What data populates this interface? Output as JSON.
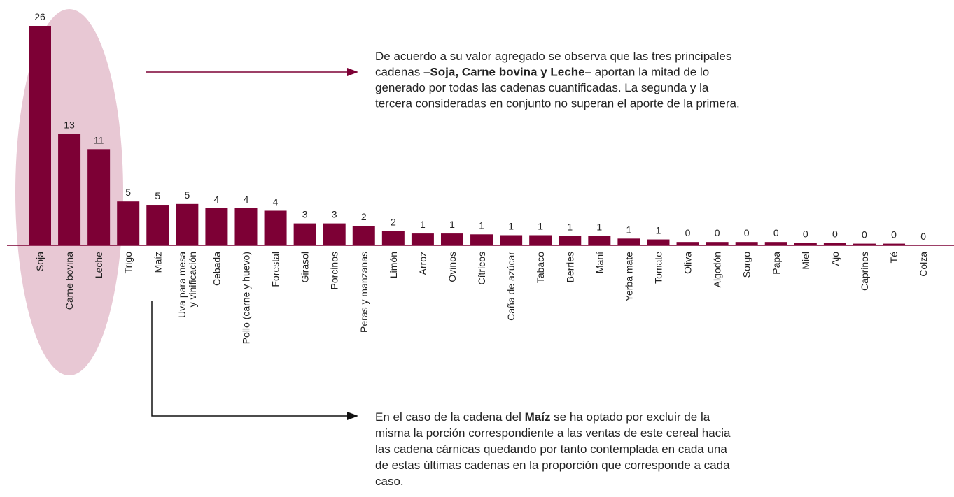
{
  "chart_data": {
    "type": "bar",
    "color": "#7d0035",
    "categories": [
      "Soja",
      "Carne bovina",
      "Leche",
      "Trigo",
      "Maíz",
      "Uva para mesa\ny vinificación",
      "Cebada",
      "Pollo (carne y huevo)",
      "Forestal",
      "Girasol",
      "Porcinos",
      "Peras y manzanas",
      "Limón",
      "Arroz",
      "Ovinos",
      "Cítricos",
      "Caña de azúcar",
      "Tabaco",
      "Berries",
      "Maní",
      "Yerba mate",
      "Tomate",
      "Oliva",
      "Algodón",
      "Sorgo",
      "Papa",
      "Miel",
      "Ajo",
      "Caprinos",
      "Té",
      "Colza"
    ],
    "values": [
      26,
      13.2,
      11.4,
      5.2,
      4.8,
      4.9,
      4.4,
      4.4,
      4.1,
      2.6,
      2.6,
      2.3,
      1.7,
      1.4,
      1.4,
      1.3,
      1.2,
      1.2,
      1.1,
      1.1,
      0.8,
      0.7,
      0.4,
      0.4,
      0.4,
      0.4,
      0.3,
      0.3,
      0.2,
      0.2,
      0
    ],
    "value_labels": [
      "26",
      "13",
      "11",
      "5",
      "5",
      "5",
      "4",
      "4",
      "4",
      "3",
      "3",
      "2",
      "2",
      "1",
      "1",
      "1",
      "1",
      "1",
      "1",
      "1",
      "1",
      "1",
      "0",
      "0",
      "0",
      "0",
      "0",
      "0",
      "0",
      "0",
      "0"
    ],
    "annotations": [
      {
        "lines": [
          [
            {
              "text": "De acuerdo a su valor agregado se observa que las tres principales",
              "bold": false
            }
          ],
          [
            {
              "text": "cadenas ",
              "bold": false
            },
            {
              "text": "–Soja, Carne bovina y Leche–",
              "bold": true
            },
            {
              "text": " aportan la mitad de lo",
              "bold": false
            }
          ],
          [
            {
              "text": "generado por todas las cadenas cuantificadas. La segunda y la",
              "bold": false
            }
          ],
          [
            {
              "text": "tercera consideradas en conjunto no superan el aporte de la primera.",
              "bold": false
            }
          ]
        ]
      },
      {
        "lines": [
          [
            {
              "text": "En el caso de la cadena del ",
              "bold": false
            },
            {
              "text": "Maíz",
              "bold": true
            },
            {
              "text": " se ha optado por excluir de la",
              "bold": false
            }
          ],
          [
            {
              "text": "misma la porción correspondiente a las ventas de este cereal hacia",
              "bold": false
            }
          ],
          [
            {
              "text": "las cadena cárnicas quedando por tanto contemplada en cada una",
              "bold": false
            }
          ],
          [
            {
              "text": "de estas últimas cadenas en la proporción que corresponde a cada",
              "bold": false
            }
          ],
          [
            {
              "text": "caso.",
              "bold": false
            }
          ]
        ]
      }
    ]
  }
}
